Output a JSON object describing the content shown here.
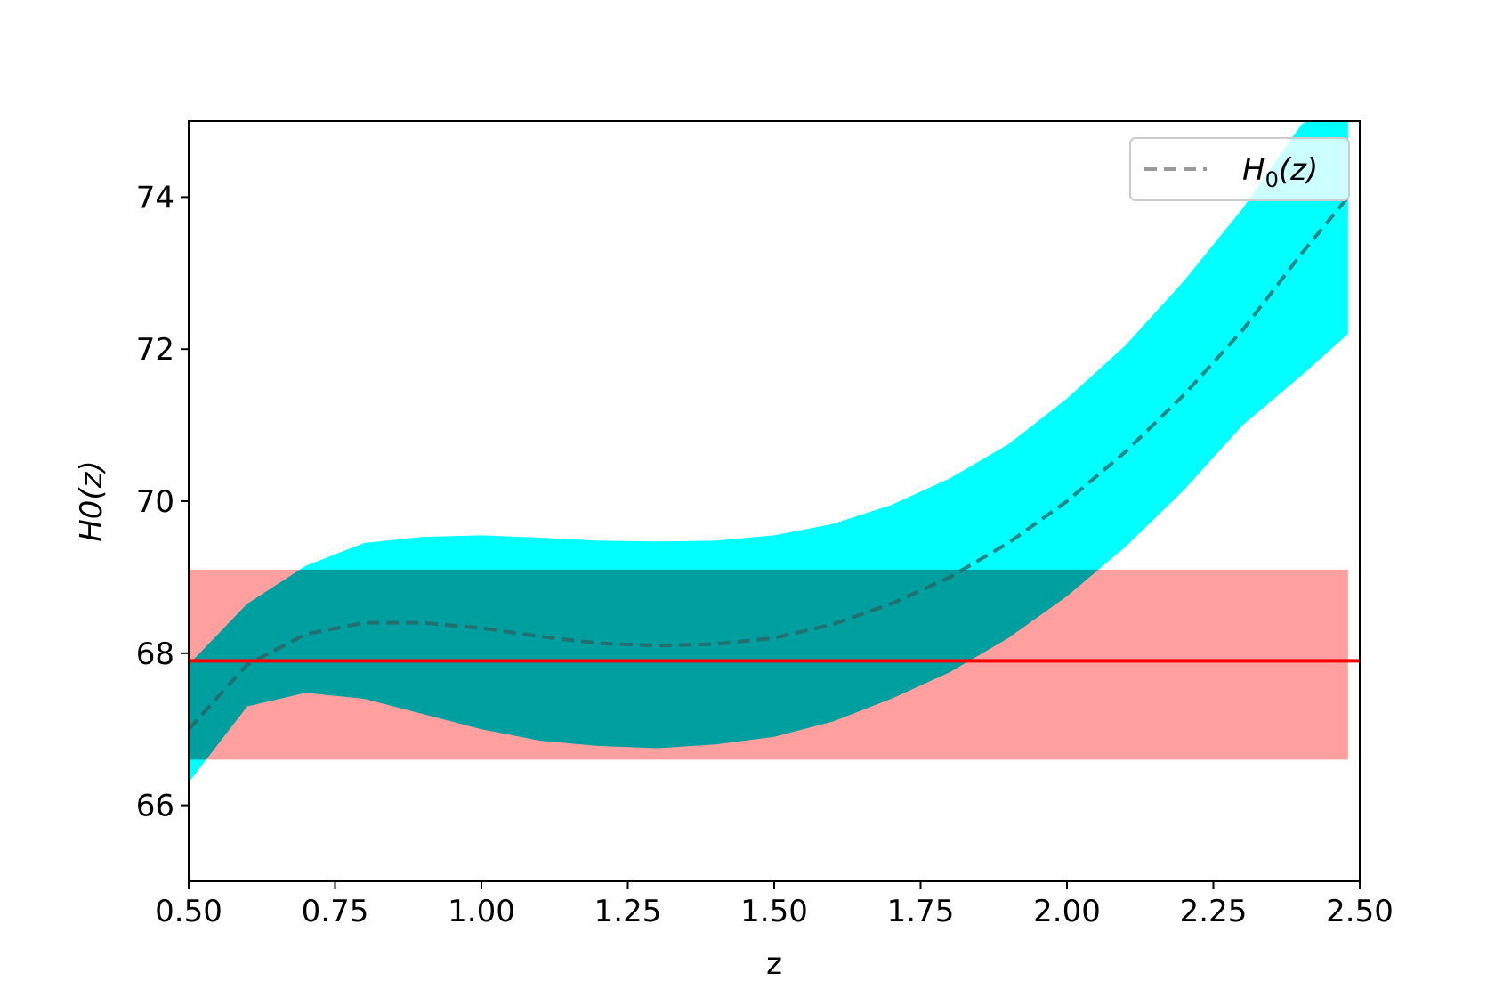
{
  "chart_data": {
    "type": "line",
    "xlabel": "z",
    "ylabel": "H0(z)",
    "xlim": [
      0.5,
      2.5
    ],
    "ylim": [
      65,
      75
    ],
    "xticks": [
      "0.50",
      "0.75",
      "1.00",
      "1.25",
      "1.50",
      "1.75",
      "2.00",
      "2.25",
      "2.50"
    ],
    "yticks": [
      "66",
      "68",
      "70",
      "72",
      "74"
    ],
    "legend": {
      "placement": "top-right",
      "entries": [
        {
          "label_base": "H",
          "label_sub": "0",
          "label_tail": "(z)"
        }
      ]
    },
    "series": [
      {
        "name": "H0(z)",
        "style": "dashed",
        "color": "#2f5f5f",
        "x": [
          0.5,
          0.6,
          0.7,
          0.8,
          0.9,
          1.0,
          1.1,
          1.2,
          1.3,
          1.4,
          1.5,
          1.6,
          1.7,
          1.8,
          1.9,
          2.0,
          2.1,
          2.2,
          2.3,
          2.4,
          2.48
        ],
        "y": [
          67.0,
          67.85,
          68.25,
          68.4,
          68.4,
          68.33,
          68.22,
          68.13,
          68.1,
          68.12,
          68.2,
          68.38,
          68.65,
          69.0,
          69.45,
          70.0,
          70.65,
          71.4,
          72.25,
          73.25,
          74.0
        ]
      }
    ],
    "band": {
      "color": "#00ffff",
      "x": [
        0.5,
        0.6,
        0.7,
        0.8,
        0.9,
        1.0,
        1.1,
        1.2,
        1.3,
        1.4,
        1.5,
        1.6,
        1.7,
        1.8,
        1.9,
        2.0,
        2.1,
        2.2,
        2.3,
        2.4,
        2.48
      ],
      "upper": [
        67.85,
        68.65,
        69.15,
        69.45,
        69.53,
        69.55,
        69.52,
        69.48,
        69.47,
        69.48,
        69.55,
        69.7,
        69.95,
        70.3,
        70.75,
        71.35,
        72.05,
        72.9,
        73.85,
        74.95,
        75.4
      ],
      "lower": [
        66.3,
        67.3,
        67.48,
        67.4,
        67.2,
        67.0,
        66.85,
        66.78,
        66.75,
        66.8,
        66.9,
        67.1,
        67.4,
        67.75,
        68.2,
        68.75,
        69.4,
        70.15,
        71.0,
        71.65,
        72.2
      ]
    },
    "reference": {
      "color": "#ff0000",
      "band_color": "#ff9a9a",
      "value": 67.9,
      "lower": 66.6,
      "upper": 69.1,
      "x_range": [
        0.5,
        2.48
      ]
    }
  }
}
